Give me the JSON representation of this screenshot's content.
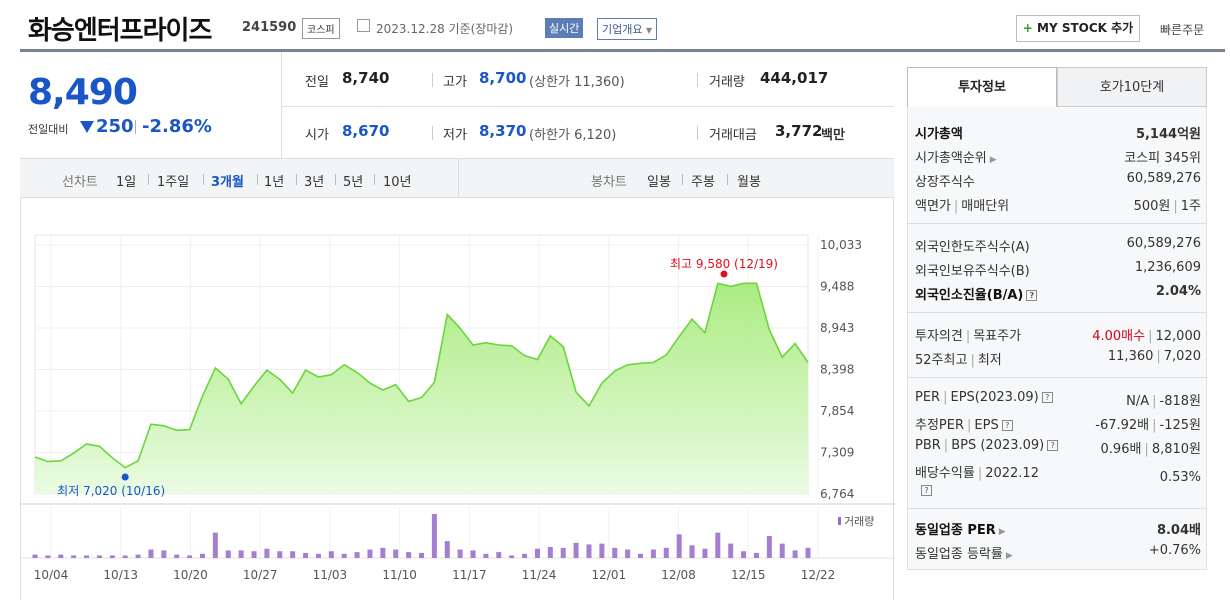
{
  "header": {
    "title": "화승엔터프라이즈",
    "code": "241590",
    "market": "코스피",
    "date": "2023.12.28 기준(장마감)",
    "realtime": "실시간",
    "company_info": "기업개요",
    "mystock_plus": "+",
    "mystock": " MY STOCK 추가",
    "quick_order": "빠른주문"
  },
  "price": {
    "current": "8,490",
    "prev_label": "전일대비",
    "change": "250",
    "change_pct": "-2.86%"
  },
  "quote": {
    "prev_label": "전일",
    "prev": "8,740",
    "high_label": "고가",
    "high": "8,700",
    "upper_limit": "(상한가 11,360)",
    "volume_label": "거래량",
    "volume": "444,017",
    "open_label": "시가",
    "open": "8,670",
    "low_label": "저가",
    "low": "8,370",
    "lower_limit": "(하한가 6,120)",
    "amount_label": "거래대금",
    "amount": "3,772",
    "amount_unit": "백만"
  },
  "period_bar": {
    "line_label": "선차트",
    "line_items": [
      "1일",
      "1주일",
      "3개월",
      "1년",
      "3년",
      "5년",
      "10년"
    ],
    "active_index": 2,
    "candle_label": "봉차트",
    "candle_items": [
      "일봉",
      "주봉",
      "월봉"
    ]
  },
  "chart_data": {
    "type": "area",
    "y_ticks": [
      "10,033",
      "9,488",
      "8,943",
      "8,398",
      "7,854",
      "7,309",
      "6,764"
    ],
    "ylim": [
      6764,
      10033
    ],
    "x_tick_labels": [
      "10/04",
      "10/13",
      "10/20",
      "10/27",
      "11/03",
      "11/10",
      "11/17",
      "11/24",
      "12/01",
      "12/08",
      "12/15",
      "12/22"
    ],
    "price_series": [
      7250,
      7190,
      7200,
      7300,
      7420,
      7390,
      7240,
      7110,
      7200,
      7680,
      7660,
      7600,
      7610,
      8050,
      8420,
      8270,
      7950,
      8180,
      8390,
      8270,
      8090,
      8390,
      8300,
      8330,
      8460,
      8360,
      8220,
      8130,
      8200,
      7980,
      8030,
      8230,
      9120,
      8940,
      8720,
      8750,
      8720,
      8710,
      8580,
      8530,
      8840,
      8700,
      8100,
      7920,
      8220,
      8380,
      8460,
      8480,
      8490,
      8590,
      8830,
      9060,
      8880,
      9530,
      9490,
      9530,
      9530,
      8920,
      8560,
      8740,
      8490
    ],
    "volume_series": [
      4,
      3,
      4,
      3,
      3,
      3,
      3,
      3,
      4,
      10,
      9,
      4,
      3,
      5,
      30,
      9,
      9,
      8,
      11,
      8,
      8,
      6,
      5,
      8,
      5,
      7,
      10,
      12,
      10,
      7,
      6,
      52,
      20,
      10,
      9,
      5,
      7,
      3,
      5,
      11,
      13,
      12,
      18,
      16,
      17,
      12,
      10,
      5,
      10,
      12,
      28,
      15,
      11,
      30,
      17,
      8,
      6,
      26,
      17,
      9,
      12
    ],
    "high_label": "최고 9,580 (12/19)",
    "low_label": "최저 7,020 (10/16)",
    "volume_legend": "거래량"
  },
  "tabs": {
    "info": "투자정보",
    "hoga": "호가10단계"
  },
  "invest_info": {
    "market_cap_label": "시가총액",
    "market_cap": "5,144억원",
    "market_cap_rank_label": "시가총액순위",
    "market_cap_rank": "코스피 345위",
    "shares_label": "상장주식수",
    "shares": "60,589,276",
    "par_label": "액면가",
    "unit_label": "매매단위",
    "par": "500원",
    "unit": "1주",
    "foreign_limit_label": "외국인한도주식수(A)",
    "foreign_limit": "60,589,276",
    "foreign_hold_label": "외국인보유주식수(B)",
    "foreign_hold": "1,236,609",
    "foreign_ratio_label": "외국인소진율(B/A)",
    "foreign_ratio": "2.04%",
    "opinion_label": "투자의견",
    "target_label": "목표주가",
    "opinion": "4.00매수",
    "target": "12,000",
    "w52_high_label": "52주최고",
    "w52_low_label": "최저",
    "w52_high": "11,360",
    "w52_low": "7,020",
    "per_label": "PER",
    "eps_label": "EPS(2023.09)",
    "per": "N/A",
    "eps": "-818원",
    "est_per_label": "추정PER",
    "est_eps_label": "EPS",
    "est_per": "-67.92배",
    "est_eps": "-125원",
    "pbr_label": "PBR",
    "bps_label": "BPS (2023.09)",
    "pbr": "0.96배",
    "bps": "8,810원",
    "div_label": "배당수익률",
    "div_year": "2022.12",
    "div": "0.53%",
    "sector_per_label": "동일업종 PER",
    "sector_per": "8.04배",
    "sector_change_label": "동일업종 등락률",
    "sector_change": "+0.76%"
  }
}
